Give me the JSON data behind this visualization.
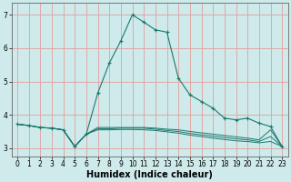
{
  "xlabel": "Humidex (Indice chaleur)",
  "bg_color": "#ceeaea",
  "grid_color": "#e0a8a8",
  "line_color": "#1a7a6e",
  "xlim": [
    -0.5,
    23.5
  ],
  "ylim": [
    2.75,
    7.35
  ],
  "yticks": [
    3,
    4,
    5,
    6,
    7
  ],
  "xticks": [
    0,
    1,
    2,
    3,
    4,
    5,
    6,
    7,
    8,
    9,
    10,
    11,
    12,
    13,
    14,
    15,
    16,
    17,
    18,
    19,
    20,
    21,
    22,
    23
  ],
  "series": [
    [
      3.72,
      3.68,
      3.62,
      3.6,
      3.55,
      3.05,
      3.42,
      4.65,
      5.55,
      6.22,
      7.0,
      6.78,
      6.55,
      6.48,
      5.1,
      4.6,
      4.4,
      4.2,
      3.9,
      3.85,
      3.9,
      3.75,
      3.65,
      3.05
    ],
    [
      3.72,
      3.68,
      3.62,
      3.6,
      3.55,
      3.05,
      3.42,
      3.62,
      3.62,
      3.62,
      3.62,
      3.62,
      3.6,
      3.57,
      3.55,
      3.5,
      3.46,
      3.42,
      3.38,
      3.34,
      3.3,
      3.25,
      3.55,
      3.05
    ],
    [
      3.72,
      3.68,
      3.62,
      3.6,
      3.55,
      3.05,
      3.42,
      3.58,
      3.58,
      3.6,
      3.6,
      3.6,
      3.57,
      3.53,
      3.5,
      3.44,
      3.4,
      3.36,
      3.32,
      3.28,
      3.25,
      3.2,
      3.35,
      3.05
    ],
    [
      3.72,
      3.68,
      3.62,
      3.6,
      3.55,
      3.05,
      3.42,
      3.55,
      3.55,
      3.56,
      3.56,
      3.55,
      3.53,
      3.49,
      3.45,
      3.39,
      3.35,
      3.3,
      3.26,
      3.22,
      3.2,
      3.16,
      3.2,
      3.05
    ]
  ]
}
